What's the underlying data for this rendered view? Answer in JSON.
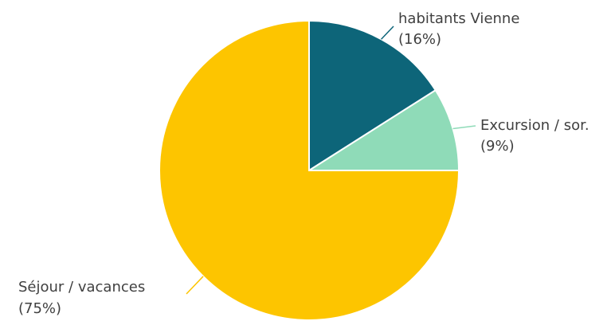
{
  "chart_data": {
    "type": "pie",
    "title": "",
    "slices": [
      {
        "label": "habitants Vienne",
        "value": 16,
        "value_text": "(16%)",
        "color": "#0d6579"
      },
      {
        "label": "Excursion / sor.",
        "value": 9,
        "value_text": "(9%)",
        "color": "#8fdbb8"
      },
      {
        "label": "Séjour / vacances",
        "value": 75,
        "value_text": "(75%)",
        "color": "#fdc500"
      }
    ],
    "start_angle": "12 o'clock",
    "direction": "clockwise",
    "legend": "none",
    "labels": "outside with leader lines"
  }
}
